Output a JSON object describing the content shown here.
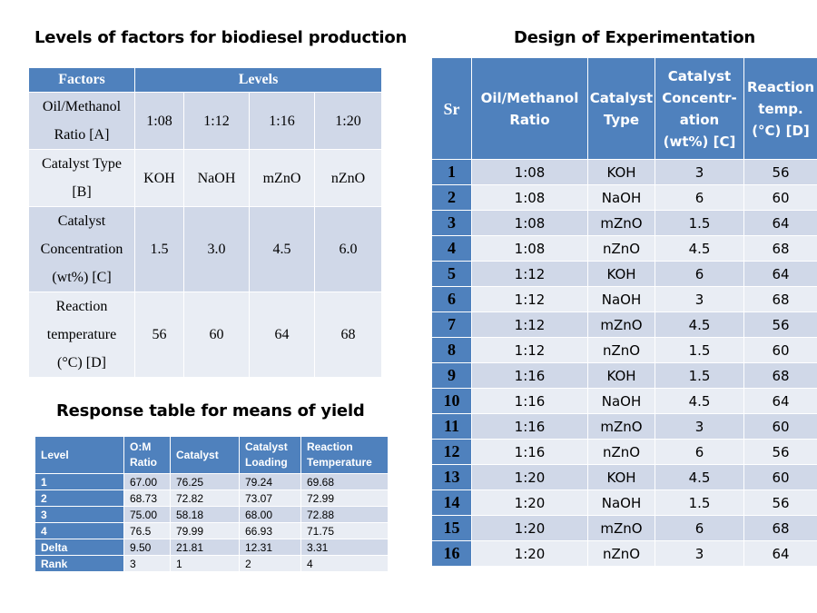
{
  "titles": {
    "levels": "Levels of factors for biodiesel production",
    "design": "Design of Experimentation",
    "response": "Response table for means of yield"
  },
  "levels_table": {
    "headers": [
      "Factors",
      "Levels"
    ],
    "rows": [
      {
        "factor": [
          "Oil/Methanol",
          "Ratio [A]"
        ],
        "levels": [
          "1:08",
          "1:12",
          "1:16",
          "1:20"
        ]
      },
      {
        "factor": [
          "Catalyst Type",
          "[B]"
        ],
        "levels": [
          "KOH",
          "NaOH",
          "mZnO",
          "nZnO"
        ]
      },
      {
        "factor": [
          "Catalyst",
          "Concentration",
          "(wt%) [C]"
        ],
        "levels": [
          "1.5",
          "3.0",
          "4.5",
          "6.0"
        ]
      },
      {
        "factor": [
          "Reaction",
          "temperature",
          "(°C) [D]"
        ],
        "levels": [
          "56",
          "60",
          "64",
          "68"
        ]
      }
    ]
  },
  "design_table": {
    "headers": [
      [
        "Sr"
      ],
      [
        "Oil/Methanol",
        "Ratio"
      ],
      [
        "Catalyst",
        "Type"
      ],
      [
        "Catalyst",
        "Concentr-",
        "ation",
        "(wt%) [C]"
      ],
      [
        "Reaction",
        "temp.",
        "(°C) [D]"
      ]
    ],
    "rows": [
      [
        "1",
        "1:08",
        "KOH",
        "3",
        "56"
      ],
      [
        "2",
        "1:08",
        "NaOH",
        "6",
        "60"
      ],
      [
        "3",
        "1:08",
        "mZnO",
        "1.5",
        "64"
      ],
      [
        "4",
        "1:08",
        "nZnO",
        "4.5",
        "68"
      ],
      [
        "5",
        "1:12",
        "KOH",
        "6",
        "64"
      ],
      [
        "6",
        "1:12",
        "NaOH",
        "3",
        "68"
      ],
      [
        "7",
        "1:12",
        "mZnO",
        "4.5",
        "56"
      ],
      [
        "8",
        "1:12",
        "nZnO",
        "1.5",
        "60"
      ],
      [
        "9",
        "1:16",
        "KOH",
        "1.5",
        "68"
      ],
      [
        "10",
        "1:16",
        "NaOH",
        "4.5",
        "64"
      ],
      [
        "11",
        "1:16",
        "mZnO",
        "3",
        "60"
      ],
      [
        "12",
        "1:16",
        "nZnO",
        "6",
        "56"
      ],
      [
        "13",
        "1:20",
        "KOH",
        "4.5",
        "60"
      ],
      [
        "14",
        "1:20",
        "NaOH",
        "1.5",
        "56"
      ],
      [
        "15",
        "1:20",
        "mZnO",
        "6",
        "68"
      ],
      [
        "16",
        "1:20",
        "nZnO",
        "3",
        "64"
      ]
    ]
  },
  "response_table": {
    "headers": [
      [
        "Level"
      ],
      [
        "O:M",
        "Ratio"
      ],
      [
        "Catalyst"
      ],
      [
        "Catalyst",
        "Loading"
      ],
      [
        "Reaction",
        " Temperature"
      ]
    ],
    "rows": [
      [
        "1",
        "67.00",
        "76.25",
        "79.24",
        "69.68"
      ],
      [
        "2",
        "68.73",
        "72.82",
        "73.07",
        "72.99"
      ],
      [
        "3",
        "75.00",
        "58.18",
        "68.00",
        "72.88"
      ],
      [
        "4",
        "76.5",
        "79.99",
        "66.93",
        "71.75"
      ],
      [
        "Delta",
        "9.50",
        "21.81",
        "12.31",
        "3.31"
      ],
      [
        "Rank",
        "3",
        "1",
        "2",
        "4"
      ]
    ]
  },
  "colors": {
    "header_blue": "#4f81bd",
    "row_dark": "#d0d8e8",
    "row_light": "#e9edf4"
  }
}
